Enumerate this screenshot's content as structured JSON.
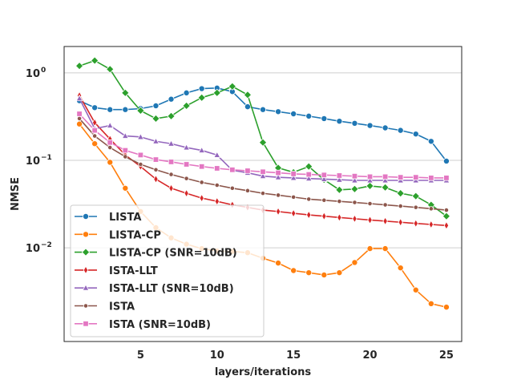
{
  "chart_data": {
    "type": "line",
    "title": "",
    "xlabel": "layers/iterations",
    "ylabel": "NMSE",
    "yscale": "log",
    "xlim": [
      0.0,
      26.0
    ],
    "ylim": [
      0.00085,
      2.0
    ],
    "x_ticks": [
      5,
      10,
      15,
      20,
      25
    ],
    "y_ticks": [
      {
        "value": 0.01,
        "label": "10"
      },
      {
        "value": 0.1,
        "label": "10"
      },
      {
        "value": 1.0,
        "label": "10"
      }
    ],
    "y_tick_exponents": [
      "−2",
      "−1",
      "0"
    ],
    "grid": true,
    "legend_position": "lower-left",
    "x": [
      1,
      2,
      3,
      4,
      5,
      6,
      7,
      8,
      9,
      10,
      11,
      12,
      13,
      14,
      15,
      16,
      17,
      18,
      19,
      20,
      21,
      22,
      23,
      24,
      25
    ],
    "series": [
      {
        "name": "LISTA",
        "color": "#1f77b4",
        "marker": "circle",
        "values": [
          0.48,
          0.4,
          0.38,
          0.38,
          0.39,
          0.42,
          0.5,
          0.59,
          0.66,
          0.67,
          0.61,
          0.41,
          0.38,
          0.36,
          0.34,
          0.32,
          0.3,
          0.28,
          0.265,
          0.25,
          0.235,
          0.22,
          0.2,
          0.165,
          0.098
        ]
      },
      {
        "name": "LISTA-CP",
        "color": "#ff7f0e",
        "marker": "circle",
        "values": [
          0.26,
          0.155,
          0.095,
          0.048,
          0.026,
          0.017,
          0.013,
          0.011,
          0.0098,
          0.0092,
          0.0091,
          0.0088,
          0.0076,
          0.0067,
          0.0055,
          0.0052,
          0.0049,
          0.0052,
          0.0068,
          0.0098,
          0.0098,
          0.0059,
          0.0033,
          0.0023,
          0.0021
        ]
      },
      {
        "name": "LISTA-CP (SNR=10dB)",
        "color": "#2ca02c",
        "marker": "diamond",
        "values": [
          1.2,
          1.38,
          1.1,
          0.59,
          0.37,
          0.3,
          0.32,
          0.42,
          0.52,
          0.59,
          0.7,
          0.56,
          0.16,
          0.082,
          0.073,
          0.085,
          0.06,
          0.046,
          0.047,
          0.051,
          0.049,
          0.042,
          0.039,
          0.031,
          0.023
        ]
      },
      {
        "name": "ISTA-LLT",
        "color": "#d62728",
        "marker": "thin_diamond",
        "values": [
          0.55,
          0.27,
          0.175,
          0.115,
          0.085,
          0.061,
          0.048,
          0.042,
          0.037,
          0.034,
          0.031,
          0.029,
          0.027,
          0.026,
          0.0248,
          0.0238,
          0.023,
          0.0222,
          0.0215,
          0.0208,
          0.0202,
          0.0196,
          0.019,
          0.0185,
          0.018
        ]
      },
      {
        "name": "ISTA-LLT (SNR=10dB)",
        "color": "#9467bd",
        "marker": "triangle",
        "values": [
          0.51,
          0.23,
          0.25,
          0.19,
          0.185,
          0.165,
          0.155,
          0.14,
          0.13,
          0.115,
          0.077,
          0.072,
          0.066,
          0.064,
          0.063,
          0.062,
          0.061,
          0.06,
          0.059,
          0.059,
          0.059,
          0.059,
          0.059,
          0.059,
          0.059
        ]
      },
      {
        "name": "ISTA",
        "color": "#8c564b",
        "marker": "small_circle",
        "values": [
          0.3,
          0.19,
          0.14,
          0.11,
          0.09,
          0.078,
          0.069,
          0.062,
          0.056,
          0.052,
          0.048,
          0.045,
          0.042,
          0.04,
          0.038,
          0.036,
          0.035,
          0.034,
          0.033,
          0.032,
          0.031,
          0.03,
          0.029,
          0.028,
          0.027
        ]
      },
      {
        "name": "ISTA (SNR=10dB)",
        "color": "#e377c2",
        "marker": "square",
        "values": [
          0.34,
          0.22,
          0.16,
          0.13,
          0.115,
          0.102,
          0.096,
          0.09,
          0.085,
          0.081,
          0.078,
          0.076,
          0.074,
          0.072,
          0.07,
          0.069,
          0.068,
          0.067,
          0.066,
          0.065,
          0.065,
          0.064,
          0.064,
          0.063,
          0.063
        ]
      }
    ]
  }
}
